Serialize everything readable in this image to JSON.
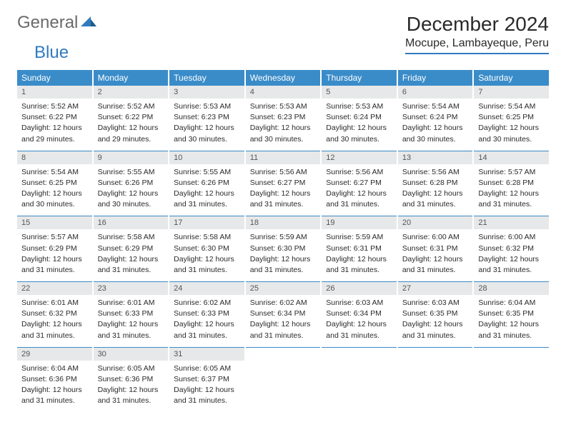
{
  "logo": {
    "part1": "General",
    "part2": "Blue"
  },
  "title": "December 2024",
  "location": "Mocupe, Lambayeque, Peru",
  "colors": {
    "accent": "#3a8cc9",
    "logo_blue": "#2f7bbf",
    "logo_gray": "#6a6a6a",
    "daynum_bg": "#e7e8e9",
    "text": "#2a2a2a",
    "bg": "#ffffff"
  },
  "day_headers": [
    "Sunday",
    "Monday",
    "Tuesday",
    "Wednesday",
    "Thursday",
    "Friday",
    "Saturday"
  ],
  "days": [
    {
      "n": "1",
      "sunrise": "Sunrise: 5:52 AM",
      "sunset": "Sunset: 6:22 PM",
      "d1": "Daylight: 12 hours",
      "d2": "and 29 minutes."
    },
    {
      "n": "2",
      "sunrise": "Sunrise: 5:52 AM",
      "sunset": "Sunset: 6:22 PM",
      "d1": "Daylight: 12 hours",
      "d2": "and 29 minutes."
    },
    {
      "n": "3",
      "sunrise": "Sunrise: 5:53 AM",
      "sunset": "Sunset: 6:23 PM",
      "d1": "Daylight: 12 hours",
      "d2": "and 30 minutes."
    },
    {
      "n": "4",
      "sunrise": "Sunrise: 5:53 AM",
      "sunset": "Sunset: 6:23 PM",
      "d1": "Daylight: 12 hours",
      "d2": "and 30 minutes."
    },
    {
      "n": "5",
      "sunrise": "Sunrise: 5:53 AM",
      "sunset": "Sunset: 6:24 PM",
      "d1": "Daylight: 12 hours",
      "d2": "and 30 minutes."
    },
    {
      "n": "6",
      "sunrise": "Sunrise: 5:54 AM",
      "sunset": "Sunset: 6:24 PM",
      "d1": "Daylight: 12 hours",
      "d2": "and 30 minutes."
    },
    {
      "n": "7",
      "sunrise": "Sunrise: 5:54 AM",
      "sunset": "Sunset: 6:25 PM",
      "d1": "Daylight: 12 hours",
      "d2": "and 30 minutes."
    },
    {
      "n": "8",
      "sunrise": "Sunrise: 5:54 AM",
      "sunset": "Sunset: 6:25 PM",
      "d1": "Daylight: 12 hours",
      "d2": "and 30 minutes."
    },
    {
      "n": "9",
      "sunrise": "Sunrise: 5:55 AM",
      "sunset": "Sunset: 6:26 PM",
      "d1": "Daylight: 12 hours",
      "d2": "and 30 minutes."
    },
    {
      "n": "10",
      "sunrise": "Sunrise: 5:55 AM",
      "sunset": "Sunset: 6:26 PM",
      "d1": "Daylight: 12 hours",
      "d2": "and 31 minutes."
    },
    {
      "n": "11",
      "sunrise": "Sunrise: 5:56 AM",
      "sunset": "Sunset: 6:27 PM",
      "d1": "Daylight: 12 hours",
      "d2": "and 31 minutes."
    },
    {
      "n": "12",
      "sunrise": "Sunrise: 5:56 AM",
      "sunset": "Sunset: 6:27 PM",
      "d1": "Daylight: 12 hours",
      "d2": "and 31 minutes."
    },
    {
      "n": "13",
      "sunrise": "Sunrise: 5:56 AM",
      "sunset": "Sunset: 6:28 PM",
      "d1": "Daylight: 12 hours",
      "d2": "and 31 minutes."
    },
    {
      "n": "14",
      "sunrise": "Sunrise: 5:57 AM",
      "sunset": "Sunset: 6:28 PM",
      "d1": "Daylight: 12 hours",
      "d2": "and 31 minutes."
    },
    {
      "n": "15",
      "sunrise": "Sunrise: 5:57 AM",
      "sunset": "Sunset: 6:29 PM",
      "d1": "Daylight: 12 hours",
      "d2": "and 31 minutes."
    },
    {
      "n": "16",
      "sunrise": "Sunrise: 5:58 AM",
      "sunset": "Sunset: 6:29 PM",
      "d1": "Daylight: 12 hours",
      "d2": "and 31 minutes."
    },
    {
      "n": "17",
      "sunrise": "Sunrise: 5:58 AM",
      "sunset": "Sunset: 6:30 PM",
      "d1": "Daylight: 12 hours",
      "d2": "and 31 minutes."
    },
    {
      "n": "18",
      "sunrise": "Sunrise: 5:59 AM",
      "sunset": "Sunset: 6:30 PM",
      "d1": "Daylight: 12 hours",
      "d2": "and 31 minutes."
    },
    {
      "n": "19",
      "sunrise": "Sunrise: 5:59 AM",
      "sunset": "Sunset: 6:31 PM",
      "d1": "Daylight: 12 hours",
      "d2": "and 31 minutes."
    },
    {
      "n": "20",
      "sunrise": "Sunrise: 6:00 AM",
      "sunset": "Sunset: 6:31 PM",
      "d1": "Daylight: 12 hours",
      "d2": "and 31 minutes."
    },
    {
      "n": "21",
      "sunrise": "Sunrise: 6:00 AM",
      "sunset": "Sunset: 6:32 PM",
      "d1": "Daylight: 12 hours",
      "d2": "and 31 minutes."
    },
    {
      "n": "22",
      "sunrise": "Sunrise: 6:01 AM",
      "sunset": "Sunset: 6:32 PM",
      "d1": "Daylight: 12 hours",
      "d2": "and 31 minutes."
    },
    {
      "n": "23",
      "sunrise": "Sunrise: 6:01 AM",
      "sunset": "Sunset: 6:33 PM",
      "d1": "Daylight: 12 hours",
      "d2": "and 31 minutes."
    },
    {
      "n": "24",
      "sunrise": "Sunrise: 6:02 AM",
      "sunset": "Sunset: 6:33 PM",
      "d1": "Daylight: 12 hours",
      "d2": "and 31 minutes."
    },
    {
      "n": "25",
      "sunrise": "Sunrise: 6:02 AM",
      "sunset": "Sunset: 6:34 PM",
      "d1": "Daylight: 12 hours",
      "d2": "and 31 minutes."
    },
    {
      "n": "26",
      "sunrise": "Sunrise: 6:03 AM",
      "sunset": "Sunset: 6:34 PM",
      "d1": "Daylight: 12 hours",
      "d2": "and 31 minutes."
    },
    {
      "n": "27",
      "sunrise": "Sunrise: 6:03 AM",
      "sunset": "Sunset: 6:35 PM",
      "d1": "Daylight: 12 hours",
      "d2": "and 31 minutes."
    },
    {
      "n": "28",
      "sunrise": "Sunrise: 6:04 AM",
      "sunset": "Sunset: 6:35 PM",
      "d1": "Daylight: 12 hours",
      "d2": "and 31 minutes."
    },
    {
      "n": "29",
      "sunrise": "Sunrise: 6:04 AM",
      "sunset": "Sunset: 6:36 PM",
      "d1": "Daylight: 12 hours",
      "d2": "and 31 minutes."
    },
    {
      "n": "30",
      "sunrise": "Sunrise: 6:05 AM",
      "sunset": "Sunset: 6:36 PM",
      "d1": "Daylight: 12 hours",
      "d2": "and 31 minutes."
    },
    {
      "n": "31",
      "sunrise": "Sunrise: 6:05 AM",
      "sunset": "Sunset: 6:37 PM",
      "d1": "Daylight: 12 hours",
      "d2": "and 31 minutes."
    }
  ]
}
